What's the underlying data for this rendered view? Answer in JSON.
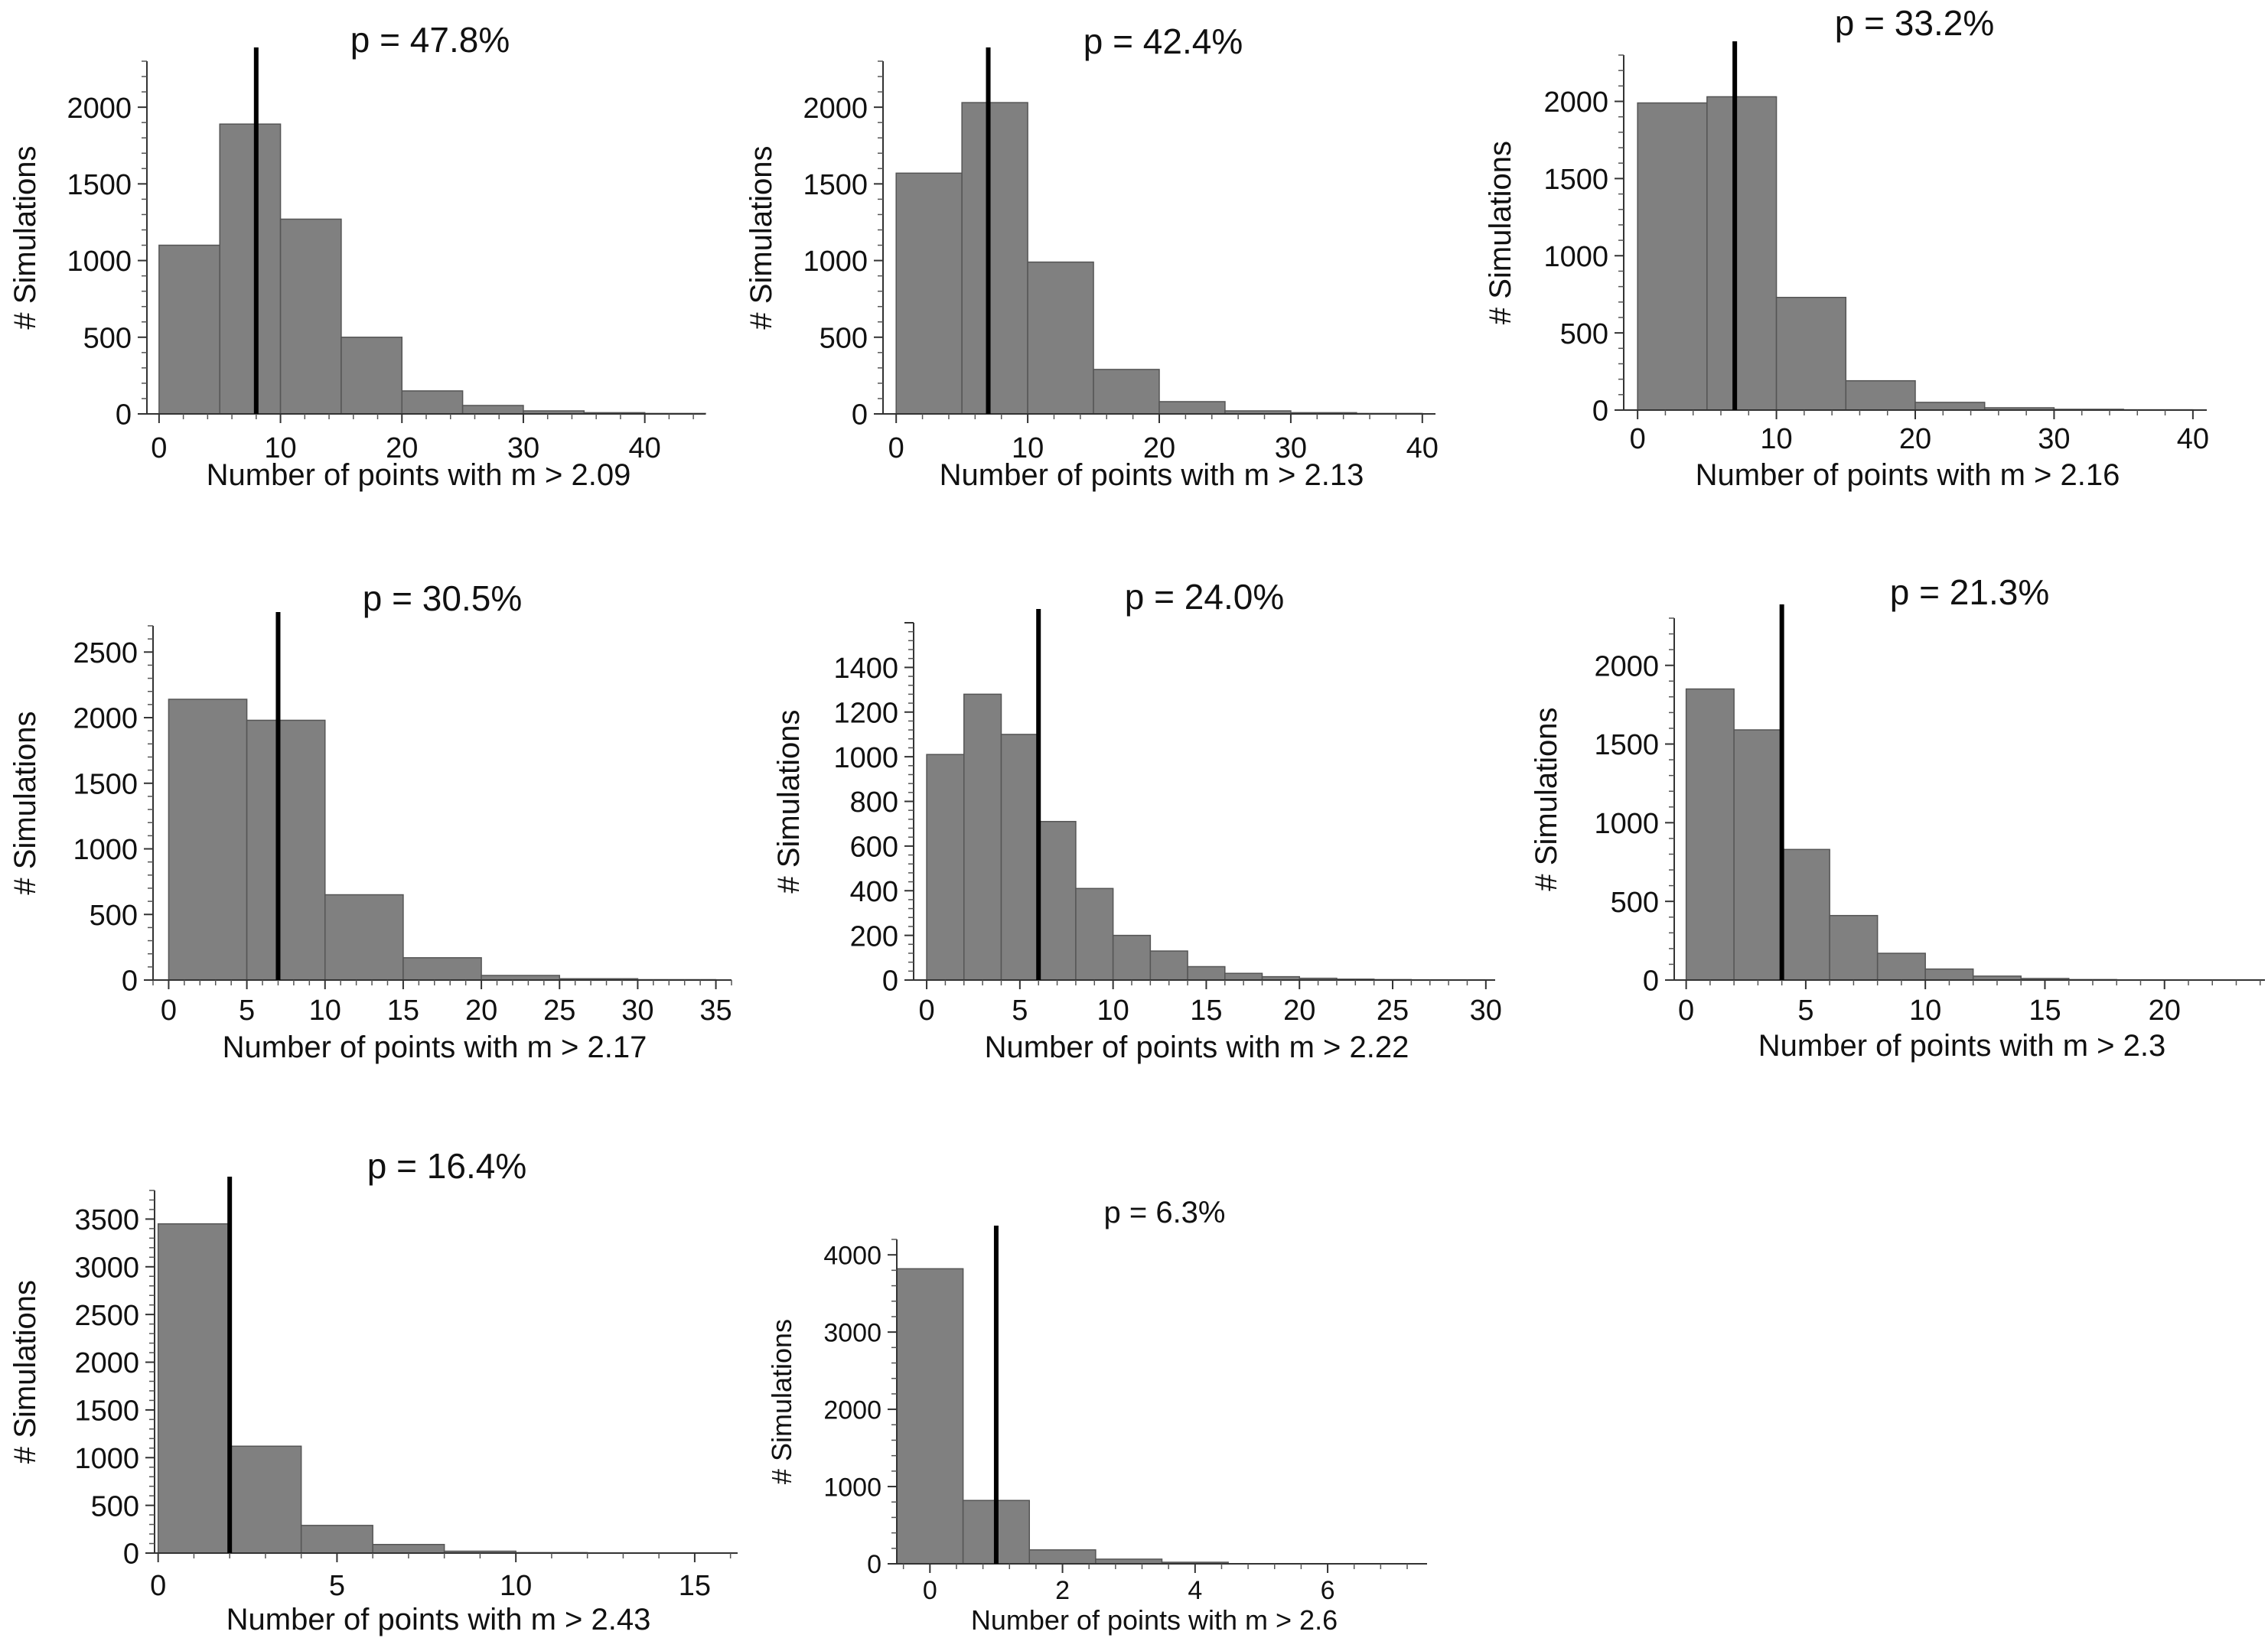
{
  "chart_data": [
    {
      "type": "bar",
      "title": "p = 47.8%",
      "xlabel": "Number of points with m > 2.09",
      "ylabel": "# Simulations",
      "bin_edges": [
        0,
        5,
        10,
        15,
        20,
        25,
        30,
        35,
        40,
        45
      ],
      "values": [
        1100,
        1890,
        1270,
        500,
        150,
        55,
        20,
        8,
        3
      ],
      "observed": 8,
      "xlim": [
        -1,
        45
      ],
      "ylim": [
        0,
        2300
      ],
      "xticks": [
        0,
        10,
        20,
        30,
        40
      ],
      "yticks": [
        0,
        500,
        1000,
        1500,
        2000
      ],
      "grid": false
    },
    {
      "type": "bar",
      "title": "p = 42.4%",
      "xlabel": "Number of points with m > 2.13",
      "ylabel": "# Simulations",
      "bin_edges": [
        0,
        5,
        10,
        15,
        20,
        25,
        30,
        35,
        40
      ],
      "values": [
        1570,
        2030,
        990,
        290,
        80,
        20,
        8,
        3
      ],
      "observed": 7,
      "xlim": [
        -1,
        41
      ],
      "ylim": [
        0,
        2300
      ],
      "xticks": [
        0,
        10,
        20,
        30,
        40
      ],
      "yticks": [
        0,
        500,
        1000,
        1500,
        2000
      ],
      "grid": false
    },
    {
      "type": "bar",
      "title": "p = 33.2%",
      "xlabel": "Number of points with m > 2.16",
      "ylabel": "# Simulations",
      "bin_edges": [
        0,
        5,
        10,
        15,
        20,
        25,
        30,
        35,
        40
      ],
      "values": [
        1990,
        2030,
        730,
        190,
        50,
        15,
        5,
        2
      ],
      "observed": 7,
      "xlim": [
        -1,
        41
      ],
      "ylim": [
        0,
        2300
      ],
      "xticks": [
        0,
        10,
        20,
        30,
        40
      ],
      "yticks": [
        0,
        500,
        1000,
        1500,
        2000
      ],
      "grid": false
    },
    {
      "type": "bar",
      "title": "p = 30.5%",
      "xlabel": "Number of points with m > 2.17",
      "ylabel": "# Simulations",
      "bin_edges": [
        0,
        5,
        10,
        15,
        20,
        25,
        30,
        35
      ],
      "values": [
        2140,
        1980,
        650,
        170,
        35,
        10,
        3
      ],
      "observed": 7,
      "xlim": [
        -1,
        36
      ],
      "ylim": [
        0,
        2700
      ],
      "xticks": [
        0,
        5,
        10,
        15,
        20,
        25,
        30,
        35
      ],
      "yticks": [
        0,
        500,
        1000,
        1500,
        2000,
        2500
      ],
      "grid": false
    },
    {
      "type": "bar",
      "title": "p = 24.0%",
      "xlabel": "Number of points with m > 2.22",
      "ylabel": "# Simulations",
      "bin_edges": [
        0,
        2,
        4,
        6,
        8,
        10,
        12,
        14,
        16,
        18,
        20,
        22,
        24,
        26,
        28,
        30
      ],
      "values": [
        1010,
        1280,
        1100,
        710,
        410,
        200,
        130,
        60,
        30,
        15,
        8,
        4,
        2,
        1,
        1
      ],
      "observed": 6,
      "xlim": [
        -0.7,
        30.5
      ],
      "ylim": [
        0,
        1600
      ],
      "xticks": [
        0,
        5,
        10,
        15,
        20,
        25,
        30
      ],
      "yticks": [
        0,
        200,
        400,
        600,
        800,
        1000,
        1200,
        1400
      ],
      "grid": false
    },
    {
      "type": "bar",
      "title": "p = 21.3%",
      "xlabel": "Number of points with m > 2.3",
      "ylabel": "# Simulations",
      "bin_edges": [
        0,
        2,
        4,
        6,
        8,
        10,
        12,
        14,
        16,
        18
      ],
      "values": [
        1850,
        1590,
        830,
        410,
        170,
        70,
        25,
        10,
        3
      ],
      "observed": 4,
      "xlim": [
        -0.5,
        24.2
      ],
      "ylim": [
        0,
        2300
      ],
      "xticks": [
        0,
        5,
        10,
        15,
        20
      ],
      "yticks": [
        0,
        500,
        1000,
        1500,
        2000
      ],
      "grid": false
    },
    {
      "type": "bar",
      "title": "p = 16.4%",
      "xlabel": "Number of points with m > 2.43",
      "ylabel": "# Simulations",
      "bin_edges": [
        0,
        2,
        4,
        6,
        8,
        10,
        12
      ],
      "values": [
        3450,
        1120,
        290,
        90,
        20,
        5
      ],
      "observed": 2,
      "xlim": [
        -0.1,
        16.2
      ],
      "ylim": [
        0,
        3800
      ],
      "xticks": [
        0,
        5,
        10,
        15
      ],
      "yticks": [
        0,
        500,
        1000,
        1500,
        2000,
        2500,
        3000,
        3500
      ],
      "grid": false
    },
    {
      "type": "bar",
      "title": "p = 6.3%",
      "xlabel": "Number of points with m > 2.6",
      "ylabel": "# Simulations",
      "bin_edges": [
        -0.5,
        0.5,
        1.5,
        2.5,
        3.5,
        4.5
      ],
      "values": [
        3820,
        820,
        180,
        60,
        20
      ],
      "observed": 1,
      "xlim": [
        -0.5,
        7.5
      ],
      "ylim": [
        0,
        4200
      ],
      "xticks": [
        0,
        2,
        4,
        6
      ],
      "yticks": [
        0,
        1000,
        2000,
        3000,
        4000
      ],
      "grid": false
    }
  ]
}
